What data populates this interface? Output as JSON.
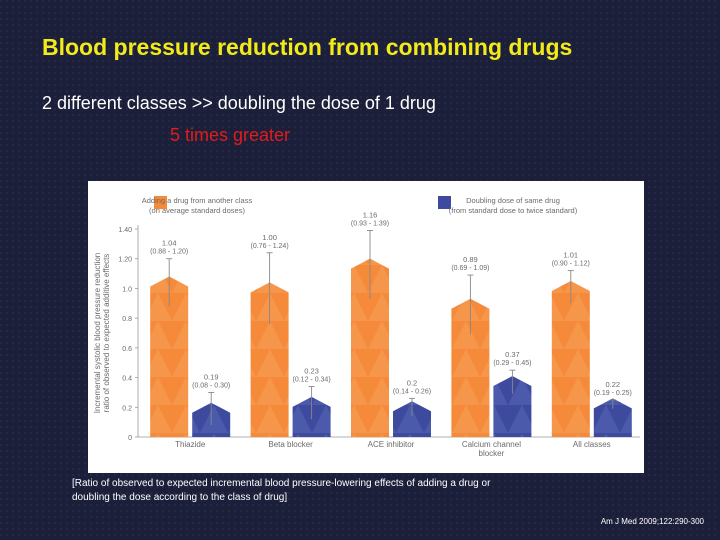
{
  "title": "Blood pressure reduction from combining drugs",
  "subtitle": "2 different classes >> doubling the dose of 1 drug",
  "highlight": "5 times greater",
  "caption": "[Ratio of observed to expected incremental blood pressure-lowering effects of adding a drug or doubling the dose according to the class of drug]",
  "reference": "Am J Med 2009;122:290-300",
  "colors": {
    "orange": "#f48a3a",
    "blue": "#3d4a9e",
    "title": "#f2ea19",
    "highlight": "#e21b1b"
  },
  "chart_data": {
    "type": "bar",
    "title": "",
    "ylabel": "Incremental systolic blood pressure reduction ratio of observed to expected additive effects",
    "ylim": [
      0,
      1.4
    ],
    "yticks": [
      "0",
      "0.2",
      "0.4",
      "0.6",
      "0.8",
      "1.0",
      "1.20",
      "1.40"
    ],
    "categories": [
      "Thiazide",
      "Beta blocker",
      "ACE inhibitor",
      "Calcium channel blocker",
      "All classes"
    ],
    "series": [
      {
        "name": "Adding a drug from another class (on average standard doses)",
        "values": [
          1.04,
          1.0,
          1.16,
          0.89,
          1.01
        ],
        "labels": [
          "1.04",
          "1.00",
          "1.16",
          "0.89",
          "1.01"
        ],
        "ci_low": [
          0.88,
          0.76,
          0.93,
          0.69,
          0.9
        ],
        "ci_high": [
          1.2,
          1.24,
          1.39,
          1.09,
          1.12
        ],
        "ci_labels": [
          "(0.88 - 1.20)",
          "(0.76 - 1.24)",
          "(0.93 - 1.39)",
          "(0.69 - 1.09)",
          "(0.90 - 1.12)"
        ]
      },
      {
        "name": "Doubling dose of same drug (from standard dose to twice standard)",
        "values": [
          0.19,
          0.23,
          0.2,
          0.37,
          0.22
        ],
        "labels": [
          "0.19",
          "0.23",
          "0.2",
          "0.37",
          "0.22"
        ],
        "ci_low": [
          0.08,
          0.12,
          0.14,
          0.29,
          0.19
        ],
        "ci_high": [
          0.3,
          0.34,
          0.26,
          0.45,
          0.25
        ],
        "ci_labels": [
          "(0.08 - 0.30)",
          "(0.12 - 0.34)",
          "(0.14 - 0.26)",
          "(0.29 - 0.45)",
          "(0.19 - 0.25)"
        ]
      }
    ],
    "legend": [
      {
        "lines": [
          "Adding a drug from another class",
          "(on average standard doses)"
        ]
      },
      {
        "lines": [
          "Doubling dose of same drug",
          "(from standard dose to twice standard)"
        ]
      }
    ],
    "category_lines": [
      [
        "Thiazide"
      ],
      [
        "Beta blocker"
      ],
      [
        "ACE inhibitor"
      ],
      [
        "Calcium channel",
        "blocker"
      ],
      [
        "All classes"
      ]
    ],
    "ylabel_lines": [
      "Incremental systolic blood pressure reduction",
      "ratio of observed to expected additive effects"
    ]
  }
}
